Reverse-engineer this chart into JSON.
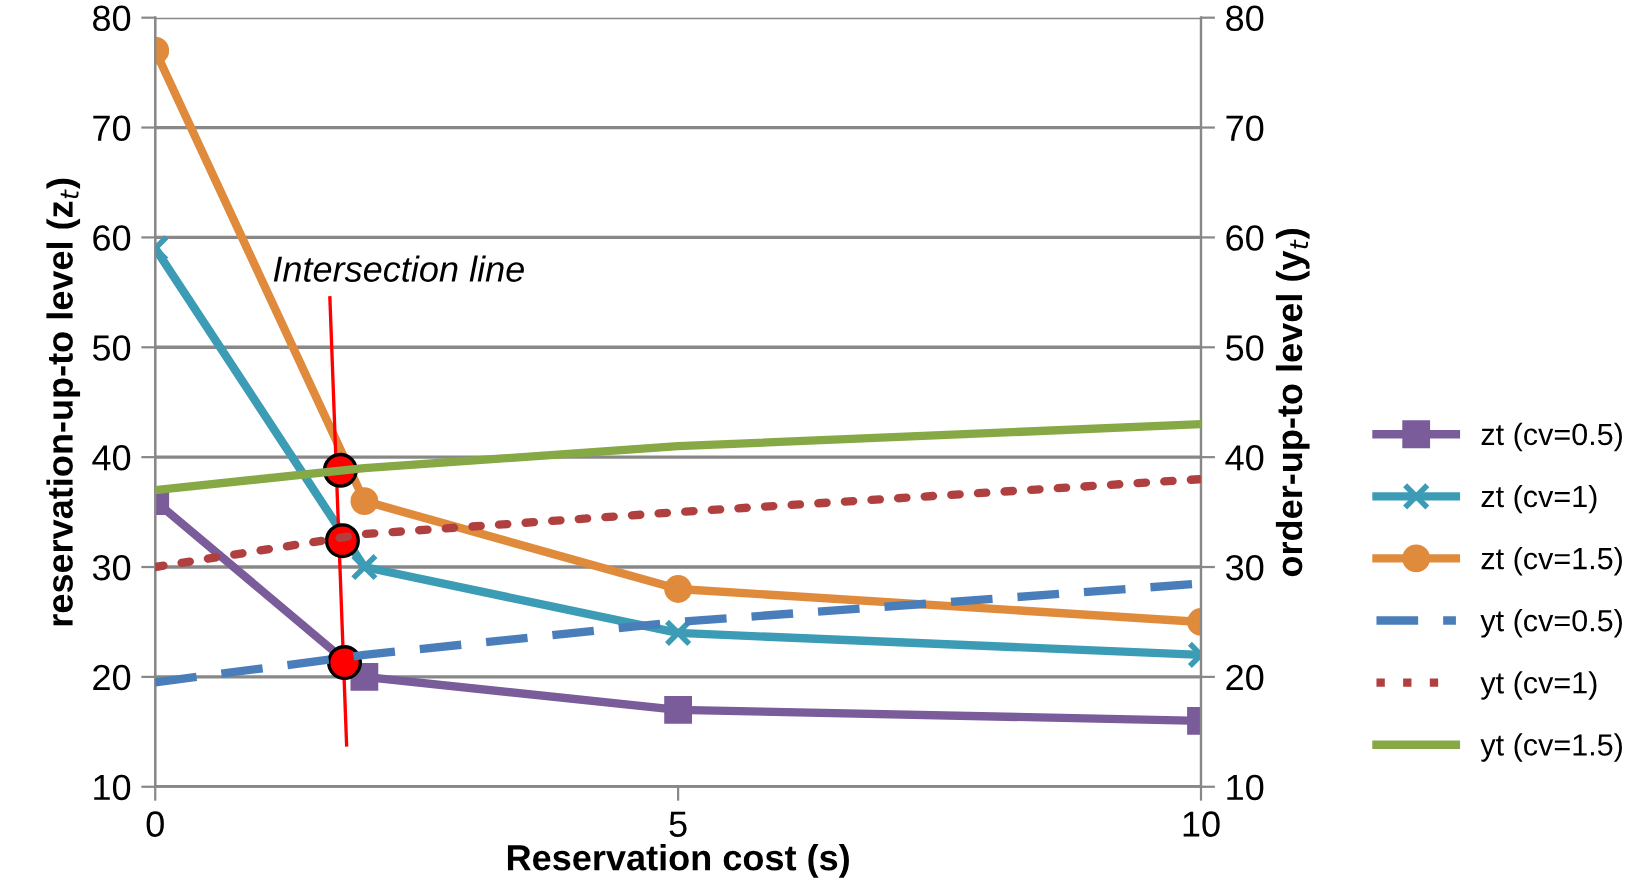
{
  "chart_data": {
    "type": "line",
    "xlabel": "Reservation cost (s)",
    "ylabel": "reservation-up-to level (z$_{t}$)",
    "y2label": "order-up-to level (y$_{t}$)",
    "xlim": [
      0,
      10
    ],
    "xticks": [
      0,
      5,
      10
    ],
    "ylim": [
      10,
      80
    ],
    "yticks": [
      10,
      20,
      30,
      40,
      50,
      60,
      70,
      80
    ],
    "y2lim": [
      10,
      80
    ],
    "y2ticks": [
      10,
      20,
      30,
      40,
      50,
      60,
      70,
      80
    ],
    "grid": "y",
    "legend": "right",
    "annotations": [
      {
        "text": "Intersection line",
        "x": 1.67,
        "y": 54.5
      }
    ],
    "series": [
      {
        "name": "zt (cv=0.5)",
        "color": "#7a5c9a",
        "x": [
          0,
          2,
          5,
          10
        ],
        "values": [
          36,
          20,
          17,
          16
        ],
        "marker": "square"
      },
      {
        "name": "zt (cv=1)",
        "color": "#3d9cb5",
        "x": [
          0,
          2,
          5,
          10
        ],
        "values": [
          59,
          30,
          24,
          22
        ],
        "marker": "cross"
      },
      {
        "name": "zt (cv=1.5)",
        "color": "#e08a3c",
        "x": [
          0,
          2,
          5,
          10
        ],
        "values": [
          77,
          36,
          28,
          25
        ],
        "marker": "circle"
      },
      {
        "name": "yt (cv=0.5)",
        "color": "#4a7ebb",
        "x": [
          0,
          2,
          5,
          10
        ],
        "values": [
          19.5,
          22,
          25,
          28.5
        ],
        "axis": "y2",
        "line_style": "dashed"
      },
      {
        "name": "yt (cv=1)",
        "color": "#b04040",
        "x": [
          0,
          2,
          5,
          10
        ],
        "values": [
          30,
          33,
          35,
          38
        ],
        "axis": "y2",
        "line_style": "dotted"
      },
      {
        "name": "yt (cv=1.5)",
        "color": "#86a845",
        "x": [
          0,
          2,
          5,
          10
        ],
        "values": [
          37,
          39,
          41,
          43
        ],
        "axis": "y2"
      },
      {
        "color": "#ff0000",
        "x": [
          1.67,
          1.83
        ],
        "values": [
          54.5,
          13.8
        ]
      },
      {
        "type": "scatter",
        "color": "#ff0000",
        "x": [
          1.77,
          1.79,
          1.81
        ],
        "values": [
          38.8,
          32.4,
          21.3
        ],
        "marker": "circle"
      }
    ]
  }
}
